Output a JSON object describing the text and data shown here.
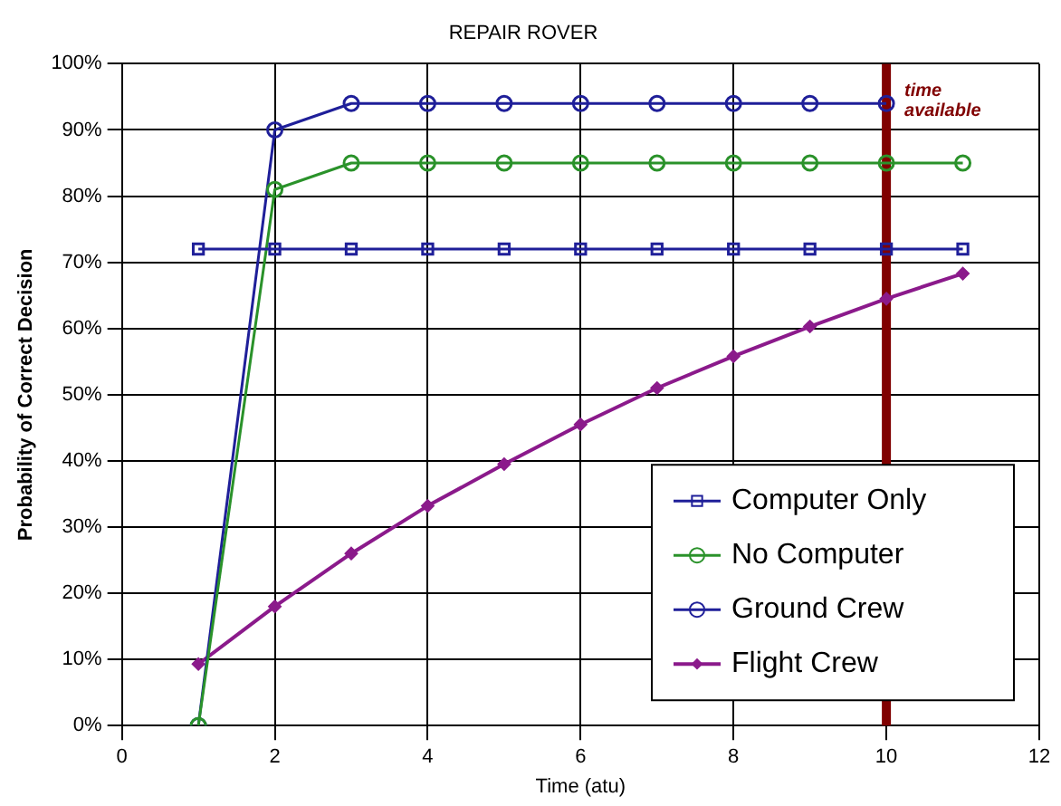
{
  "chart_data": {
    "type": "line",
    "title": "REPAIR ROVER",
    "xlabel": "Time (atu)",
    "ylabel": "Probability of Correct Decision",
    "xlim": [
      0,
      12
    ],
    "xticks": [
      0,
      2,
      4,
      6,
      8,
      10,
      12
    ],
    "ylim": [
      0,
      100
    ],
    "yticks": [
      {
        "value": 0,
        "label": "0%"
      },
      {
        "value": 10,
        "label": "10%"
      },
      {
        "value": 20,
        "label": "20%"
      },
      {
        "value": 30,
        "label": "30%"
      },
      {
        "value": 40,
        "label": "40%"
      },
      {
        "value": 50,
        "label": "50%"
      },
      {
        "value": 60,
        "label": "60%"
      },
      {
        "value": 70,
        "label": "70%"
      },
      {
        "value": 80,
        "label": "80%"
      },
      {
        "value": 90,
        "label": "90%"
      },
      {
        "value": 100,
        "label": "100%"
      }
    ],
    "grid": true,
    "legend": "bottom right",
    "line_style": "solid",
    "series": [
      {
        "name": "Computer Only",
        "color": "#1f1f99",
        "marker": "square",
        "x": [
          1,
          2,
          3,
          4,
          5,
          6,
          7,
          8,
          9,
          10,
          11
        ],
        "values": [
          72,
          72,
          72,
          72,
          72,
          72,
          72,
          72,
          72,
          72,
          72
        ]
      },
      {
        "name": "No Computer",
        "color": "#2a922a",
        "marker": "circle",
        "x": [
          1,
          2,
          3,
          4,
          5,
          6,
          7,
          8,
          9,
          10,
          11
        ],
        "values": [
          0,
          81,
          85,
          85,
          85,
          85,
          85,
          85,
          85,
          85,
          85
        ]
      },
      {
        "name": "Ground Crew",
        "color": "#1f1f99",
        "marker": "circle",
        "x": [
          1,
          2,
          3,
          4,
          5,
          6,
          7,
          8,
          9,
          10
        ],
        "values": [
          0,
          90,
          94,
          94,
          94,
          94,
          94,
          94,
          94,
          94
        ]
      },
      {
        "name": "Flight Crew",
        "color": "#8b1a8b",
        "marker": "diamond",
        "x": [
          1,
          2,
          3,
          4,
          5,
          6,
          7,
          8,
          9,
          10,
          11
        ],
        "values": [
          9.3,
          18,
          26,
          33.2,
          39.5,
          45.5,
          51,
          55.8,
          60.3,
          64.5,
          68.3
        ]
      }
    ],
    "ref_lines": [
      {
        "axis": "x",
        "value": 10,
        "label": "time available",
        "color": "#800000"
      }
    ]
  }
}
